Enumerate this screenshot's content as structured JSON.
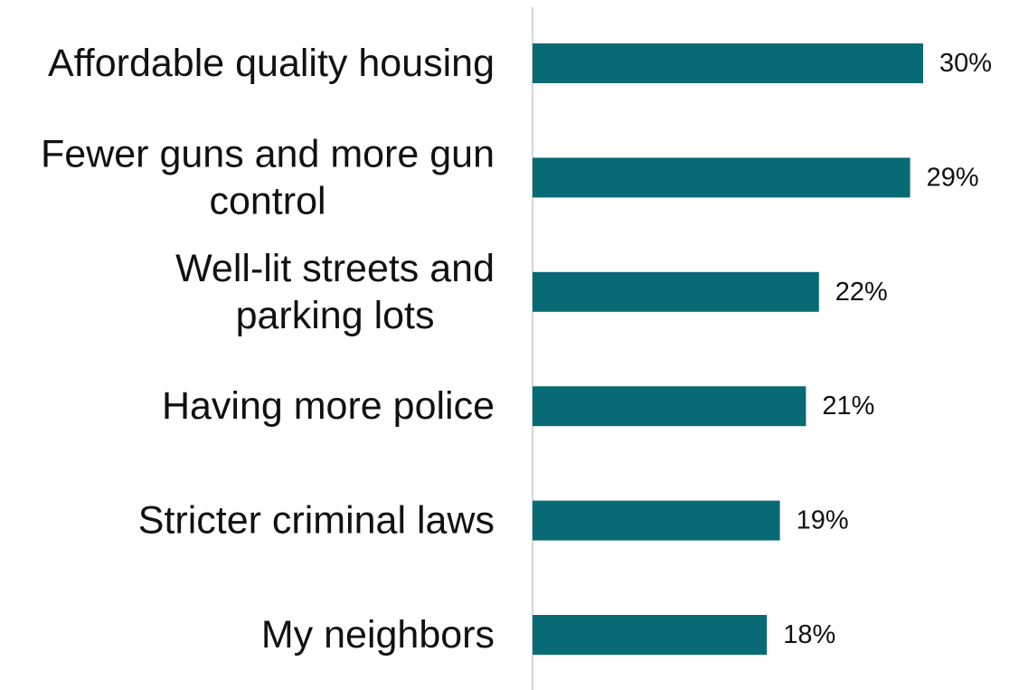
{
  "colors": {
    "bar": "#076a75",
    "axis": "#c8c8c8",
    "text": "#111111"
  },
  "chart_data": {
    "type": "bar",
    "orientation": "horizontal",
    "title": "",
    "xlabel": "",
    "ylabel": "",
    "categories": [
      "Affordable quality housing",
      "Fewer guns and more gun control",
      "Well-lit streets and parking lots",
      "Having more police",
      "Stricter criminal laws",
      "My neighbors"
    ],
    "category_lines": [
      [
        "Affordable quality housing"
      ],
      [
        "Fewer guns and more gun",
        "control"
      ],
      [
        "Well-lit streets and",
        "parking lots"
      ],
      [
        "Having more police"
      ],
      [
        "Stricter criminal laws"
      ],
      [
        "My neighbors"
      ]
    ],
    "values": [
      30,
      29,
      22,
      21,
      19,
      18
    ],
    "value_labels": [
      "30%",
      "29%",
      "22%",
      "21%",
      "19%",
      "18%"
    ],
    "value_suffix": "%",
    "xlim": [
      0,
      30
    ],
    "grid": false,
    "legend": "none"
  }
}
